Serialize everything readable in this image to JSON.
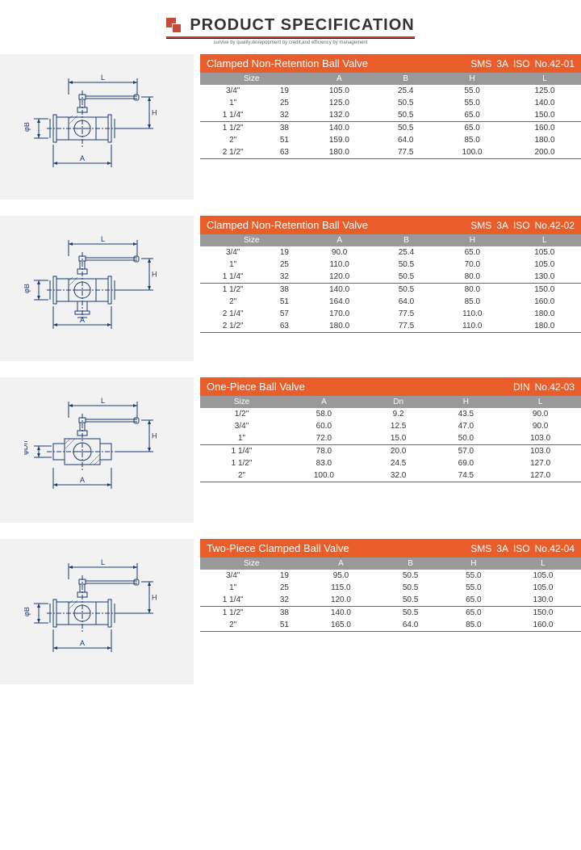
{
  "header": {
    "title_bold": "PRODUCT",
    "title_light": "SPECIFICATION",
    "subtitle": "survive by quality,devepopment by credit,and efficiency by management"
  },
  "colors": {
    "orange": "#e95d2a",
    "gray_header": "#999999",
    "diagram_bg": "#f2f2f2",
    "diagram_line": "#1a3a6e",
    "logo": "#c44a3a"
  },
  "sections": [
    {
      "title": "Clamped Non-Retention Ball Valve",
      "codes": [
        "SMS",
        "3A",
        "ISO",
        "No.42-01"
      ],
      "headers": [
        "Size",
        "",
        "A",
        "B",
        "H",
        "L"
      ],
      "divider_after": [
        2
      ],
      "rows": [
        [
          "3/4\"",
          "19",
          "105.0",
          "25.4",
          "55.0",
          "125.0"
        ],
        [
          "1\"",
          "25",
          "125.0",
          "50.5",
          "55.0",
          "140.0"
        ],
        [
          "1 1/4\"",
          "32",
          "132.0",
          "50.5",
          "65.0",
          "150.0"
        ],
        [
          "1 1/2\"",
          "38",
          "140.0",
          "50.5",
          "65.0",
          "160.0"
        ],
        [
          "2\"",
          "51",
          "159.0",
          "64.0",
          "85.0",
          "180.0"
        ],
        [
          "2 1/2\"",
          "63",
          "180.0",
          "77.5",
          "100.0",
          "200.0"
        ]
      ],
      "diag": "valve1"
    },
    {
      "title": "Clamped Non-Retention Ball Valve",
      "codes": [
        "SMS",
        "3A",
        "ISO",
        "No.42-02"
      ],
      "headers": [
        "Size",
        "",
        "A",
        "B",
        "H",
        "L"
      ],
      "divider_after": [
        2
      ],
      "rows": [
        [
          "3/4\"",
          "19",
          "90.0",
          "25.4",
          "65.0",
          "105.0"
        ],
        [
          "1\"",
          "25",
          "110.0",
          "50.5",
          "70.0",
          "105.0"
        ],
        [
          "1 1/4\"",
          "32",
          "120.0",
          "50.5",
          "80.0",
          "130.0"
        ],
        [
          "1 1/2\"",
          "38",
          "140.0",
          "50.5",
          "80.0",
          "150.0"
        ],
        [
          "2\"",
          "51",
          "164.0",
          "64.0",
          "85.0",
          "160.0"
        ],
        [
          "2 1/4\"",
          "57",
          "170.0",
          "77.5",
          "110.0",
          "180.0"
        ],
        [
          "2 1/2\"",
          "63",
          "180.0",
          "77.5",
          "110.0",
          "180.0"
        ]
      ],
      "diag": "valve2"
    },
    {
      "title": "One-Piece Ball Valve",
      "codes": [
        "DIN",
        "No.42-03"
      ],
      "headers": [
        "Size",
        "A",
        "Dn",
        "H",
        "L"
      ],
      "divider_after": [
        2
      ],
      "rows": [
        [
          "1/2\"",
          "58.0",
          "9.2",
          "43.5",
          "90.0"
        ],
        [
          "3/4\"",
          "60.0",
          "12.5",
          "47.0",
          "90.0"
        ],
        [
          "1\"",
          "72.0",
          "15.0",
          "50.0",
          "103.0"
        ],
        [
          "1 1/4\"",
          "78.0",
          "20.0",
          "57.0",
          "103.0"
        ],
        [
          "1 1/2\"",
          "83.0",
          "24.5",
          "69.0",
          "127.0"
        ],
        [
          "2\"",
          "100.0",
          "32.0",
          "74.5",
          "127.0"
        ]
      ],
      "diag": "valve3"
    },
    {
      "title": "Two-Piece Clamped Ball Valve",
      "codes": [
        "SMS",
        "3A",
        "ISO",
        "No.42-04"
      ],
      "headers": [
        "Size",
        "",
        "A",
        "B",
        "H",
        "L"
      ],
      "divider_after": [
        2
      ],
      "rows": [
        [
          "3/4\"",
          "19",
          "95.0",
          "50.5",
          "55.0",
          "105.0"
        ],
        [
          "1\"",
          "25",
          "115.0",
          "50.5",
          "55.0",
          "105.0"
        ],
        [
          "1 1/4\"",
          "32",
          "120.0",
          "50.5",
          "65.0",
          "130.0"
        ],
        [
          "1 1/2\"",
          "38",
          "140.0",
          "50.5",
          "65.0",
          "150.0"
        ],
        [
          "2\"",
          "51",
          "165.0",
          "64.0",
          "85.0",
          "160.0"
        ]
      ],
      "diag": "valve4"
    }
  ]
}
